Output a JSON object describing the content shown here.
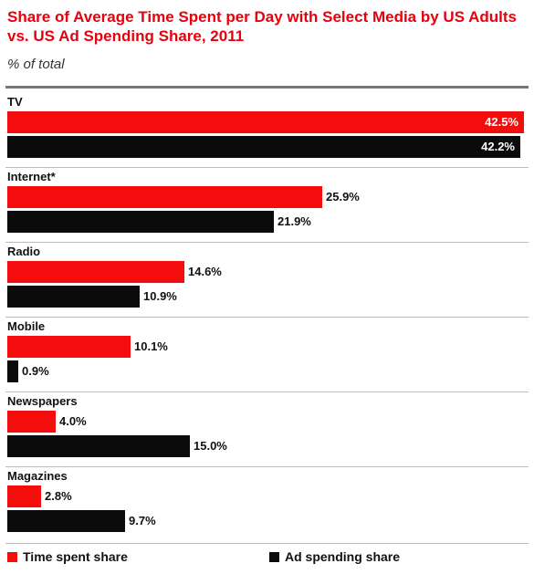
{
  "chart_data": {
    "type": "bar",
    "orientation": "horizontal",
    "title": "Share of Average Time Spent per Day with Select Media by US Adults vs. US Ad Spending Share, 2011",
    "subtitle": "% of total",
    "categories": [
      "TV",
      "Internet*",
      "Radio",
      "Mobile",
      "Newspapers",
      "Magazines"
    ],
    "series": [
      {
        "name": "Time spent share",
        "color": "#f40d0d",
        "values": [
          42.5,
          25.9,
          14.6,
          10.1,
          4.0,
          2.8
        ],
        "labels": [
          "42.5%",
          "25.9%",
          "14.6%",
          "10.1%",
          "4.0%",
          "2.8%"
        ]
      },
      {
        "name": "Ad spending share",
        "color": "#0b0b0b",
        "values": [
          42.2,
          21.9,
          10.9,
          0.9,
          15.0,
          9.7
        ],
        "labels": [
          "42.2%",
          "21.9%",
          "10.9%",
          "0.9%",
          "15.0%",
          "9.7%"
        ]
      }
    ],
    "xlim": [
      0,
      42.5
    ],
    "legend_position": "bottom",
    "grid": false
  }
}
